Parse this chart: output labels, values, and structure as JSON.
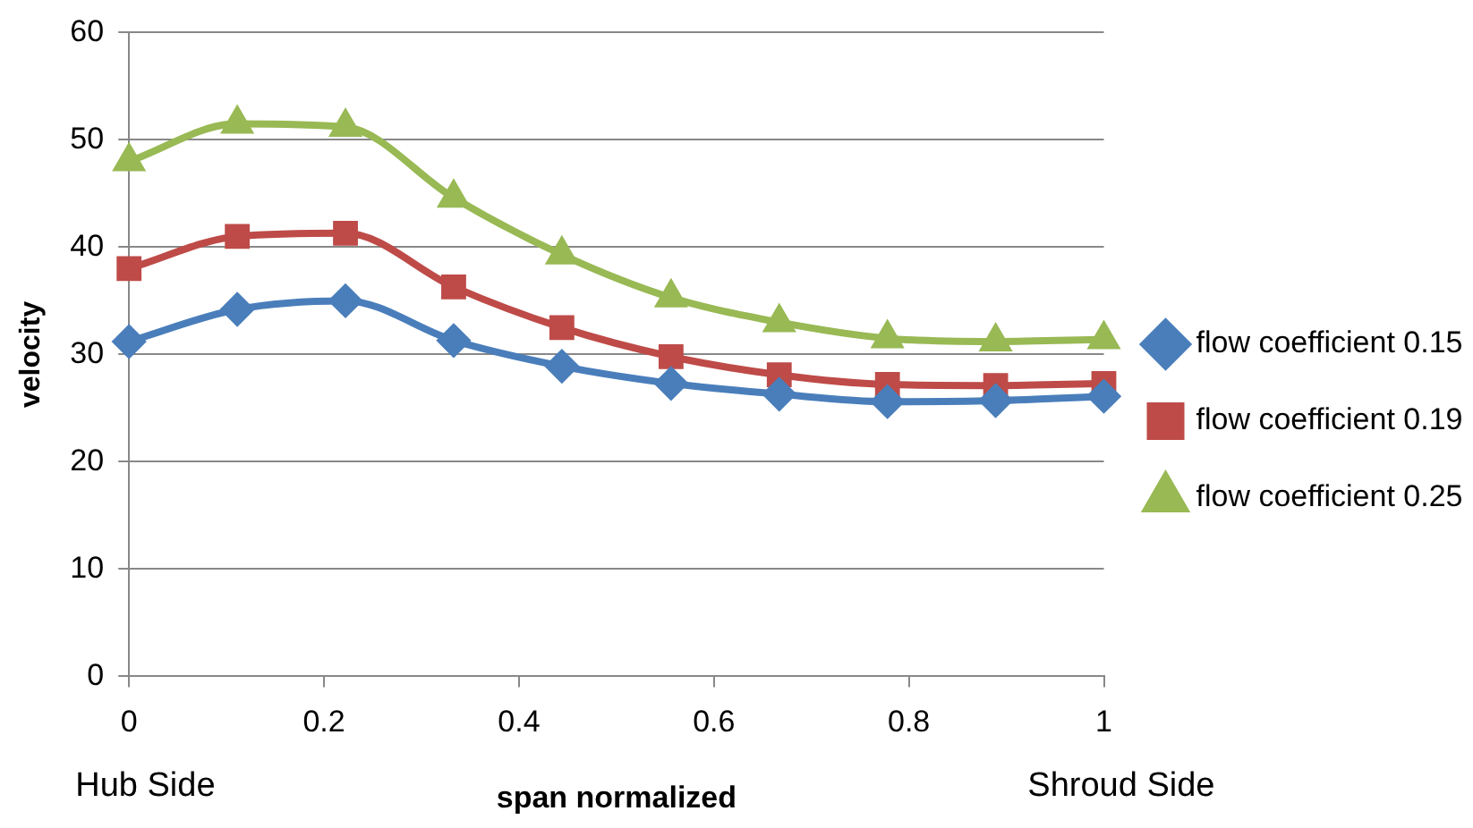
{
  "chart_data": {
    "type": "line",
    "xlabel": "span normalized",
    "ylabel": "velocity",
    "x": [
      0,
      0.111,
      0.222,
      0.333,
      0.444,
      0.556,
      0.667,
      0.778,
      0.889,
      1
    ],
    "series": [
      {
        "name": "flow coefficient 0.15",
        "color": "#4a7ebb",
        "marker": "diamond",
        "values": [
          31.2,
          34.2,
          35,
          31.3,
          28.9,
          27.3,
          26.3,
          25.6,
          25.7,
          26.1
        ]
      },
      {
        "name": "flow coefficient 0.19",
        "color": "#be4b48",
        "marker": "square",
        "values": [
          38,
          41,
          41.3,
          36.3,
          32.5,
          29.8,
          28.1,
          27.2,
          27.1,
          27.3
        ]
      },
      {
        "name": "flow coefficient 0.25",
        "color": "#98b954",
        "marker": "triangle",
        "values": [
          48,
          51.5,
          51.2,
          44.6,
          39.3,
          35.3,
          33,
          31.5,
          31.2,
          31.4
        ]
      }
    ],
    "xlim": [
      0,
      1
    ],
    "xticks": [
      0,
      0.2,
      0.4,
      0.6,
      0.8,
      1
    ],
    "ylim": [
      0,
      60
    ],
    "yticks": [
      0,
      10,
      20,
      30,
      40,
      50,
      60
    ],
    "grid": "y",
    "legend": "right",
    "annotations": [
      "Hub Side",
      "Shroud Side"
    ]
  }
}
